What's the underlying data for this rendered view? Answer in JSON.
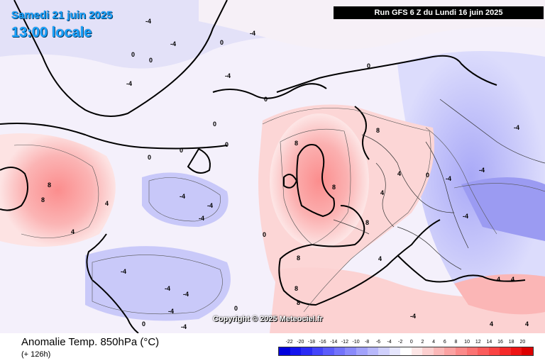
{
  "header": {
    "date": "Samedi 21 juin 2025",
    "time": "13:00 locale",
    "run": "Run GFS 6 Z du Lundi 16 juin 2025"
  },
  "footer": {
    "variable": "Anomalie Temp. 850hPa (°C)",
    "lead": "(+ 126h)",
    "copyright": "Copyright © 2025 Meteociel.fr"
  },
  "legend": {
    "ticks": [
      "-22",
      "-20",
      "-18",
      "-16",
      "-14",
      "-12",
      "-10",
      "-8",
      "-6",
      "-4",
      "-2",
      "0",
      "2",
      "4",
      "6",
      "8",
      "10",
      "12",
      "14",
      "16",
      "18",
      "20"
    ],
    "colors": [
      "#0000dd",
      "#1414ee",
      "#2a2af5",
      "#4444fa",
      "#5c5cfb",
      "#7373fb",
      "#8a8afb",
      "#a2a2fb",
      "#b8b8fb",
      "#d0d0fc",
      "#e6e6fd",
      "#ffffff",
      "#fde6e6",
      "#fccfcf",
      "#fbb8b8",
      "#fba2a2",
      "#fb8a8a",
      "#fb7373",
      "#fb5c5c",
      "#fa4444",
      "#f52a2a",
      "#ee1414",
      "#dd0000"
    ]
  },
  "contour_labels": [
    "-4",
    "0",
    "4",
    "8"
  ],
  "icons": {
    "map": "temperature-anomaly-map"
  }
}
